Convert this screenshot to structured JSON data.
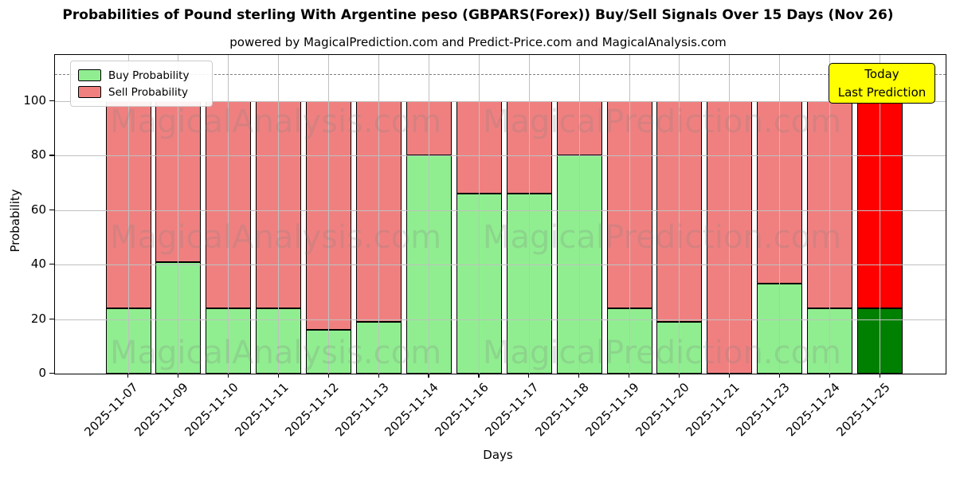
{
  "title": "Probabilities of Pound sterling With Argentine peso (GBPARS(Forex)) Buy/Sell Signals Over 15 Days (Nov 26)",
  "subtitle": "powered by MagicalPrediction.com and Predict-Price.com and MagicalAnalysis.com",
  "annotation": {
    "line1": "Today",
    "line2": "Last Prediction",
    "bg_color": "#ffff00",
    "border_color": "#000000"
  },
  "legend": {
    "items": [
      {
        "label": "Buy Probability",
        "color": "#90ee90"
      },
      {
        "label": "Sell Probability",
        "color": "#f08080"
      }
    ]
  },
  "watermarks": [
    "MagicalAnalysis.com",
    "MagicalPrediction.com"
  ],
  "colors": {
    "buy": "#90ee90",
    "sell": "#f08080",
    "buy_today": "#008000",
    "sell_today": "#ff0000",
    "grid": "#c0c0c0",
    "dashed_line": "#7f7f7f"
  },
  "chart_data": {
    "type": "bar",
    "stacked": true,
    "title": "Probabilities of Pound sterling With Argentine peso (GBPARS(Forex)) Buy/Sell Signals Over 15 Days (Nov 26)",
    "xlabel": "Days",
    "ylabel": "Probability",
    "categories": [
      "2025-11-07",
      "2025-11-09",
      "2025-11-10",
      "2025-11-11",
      "2025-11-12",
      "2025-11-13",
      "2025-11-14",
      "2025-11-16",
      "2025-11-17",
      "2025-11-18",
      "2025-11-19",
      "2025-11-20",
      "2025-11-21",
      "2025-11-23",
      "2025-11-24",
      "2025-11-25"
    ],
    "series": [
      {
        "name": "Buy Probability",
        "color": "#90ee90",
        "last_bar_color": "#008000",
        "values": [
          24,
          41,
          24,
          24,
          16,
          19,
          80,
          66,
          66,
          80,
          24,
          19,
          0,
          33,
          24,
          24
        ]
      },
      {
        "name": "Sell Probability",
        "color": "#f08080",
        "last_bar_color": "#ff0000",
        "values": [
          76,
          59,
          76,
          76,
          84,
          81,
          20,
          34,
          34,
          20,
          76,
          81,
          100,
          67,
          76,
          76
        ]
      }
    ],
    "yticks": [
      0,
      20,
      40,
      60,
      80,
      100
    ],
    "ylim": [
      0,
      117
    ],
    "grid": true,
    "grid_above_bars": true,
    "dashed_line_y": 110,
    "legend_position": "upper left",
    "last_bar_highlight": {
      "label": "Today Last Prediction",
      "buy_color": "#008000",
      "sell_color": "#ff0000"
    }
  }
}
